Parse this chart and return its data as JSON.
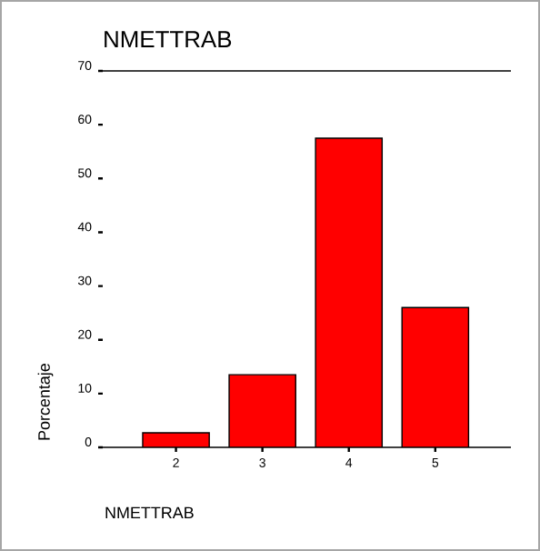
{
  "chart_data": {
    "type": "bar",
    "title": "NMETTRAB",
    "xlabel": "NMETTRAB",
    "ylabel": "Porcentaje",
    "categories": [
      "2",
      "3",
      "4",
      "5"
    ],
    "values": [
      2.7,
      13.5,
      57.5,
      26.0
    ],
    "color": "#ff0000",
    "ylim": [
      0,
      70
    ],
    "yticks": [
      0,
      10,
      20,
      30,
      40,
      50,
      60,
      70
    ]
  }
}
